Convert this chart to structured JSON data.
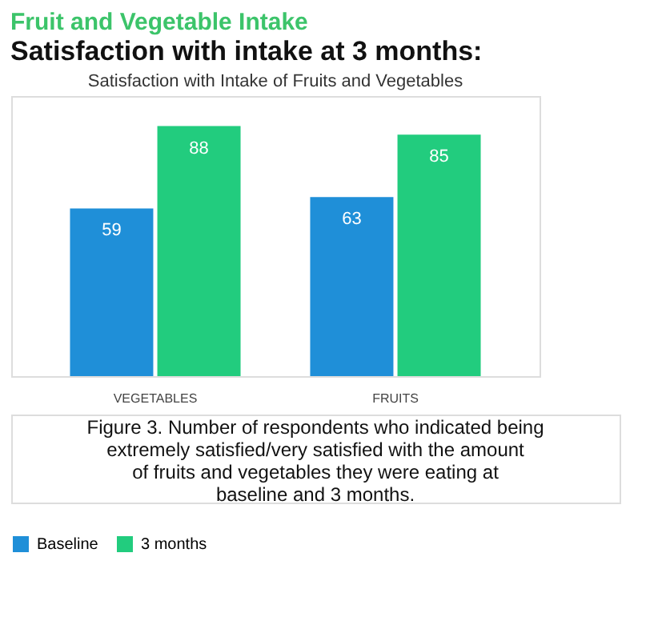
{
  "chart_data": {
    "type": "bar",
    "title": "Fruit and Vegetable Intake",
    "subtitle": "Satisfaction with intake at 3 months:",
    "annotations": [
      "Satisfaction with Intake of Fruits and Vegetables",
      "Figure 3. Number of respondents who indicated being extremely satisfied/very satisfied with the amount of fruits and vegetables they were eating at baseline and 3 months."
    ],
    "categories": [
      "VEGETABLES",
      "FRUITS"
    ],
    "series": [
      {
        "name": "Baseline",
        "color": "#1f8fd8",
        "values": [
          59,
          63
        ]
      },
      {
        "name": "3 months",
        "color": "#22cc7e",
        "values": [
          88,
          85
        ]
      }
    ],
    "data_labels": true,
    "legend": "bottom",
    "grid": false
  }
}
